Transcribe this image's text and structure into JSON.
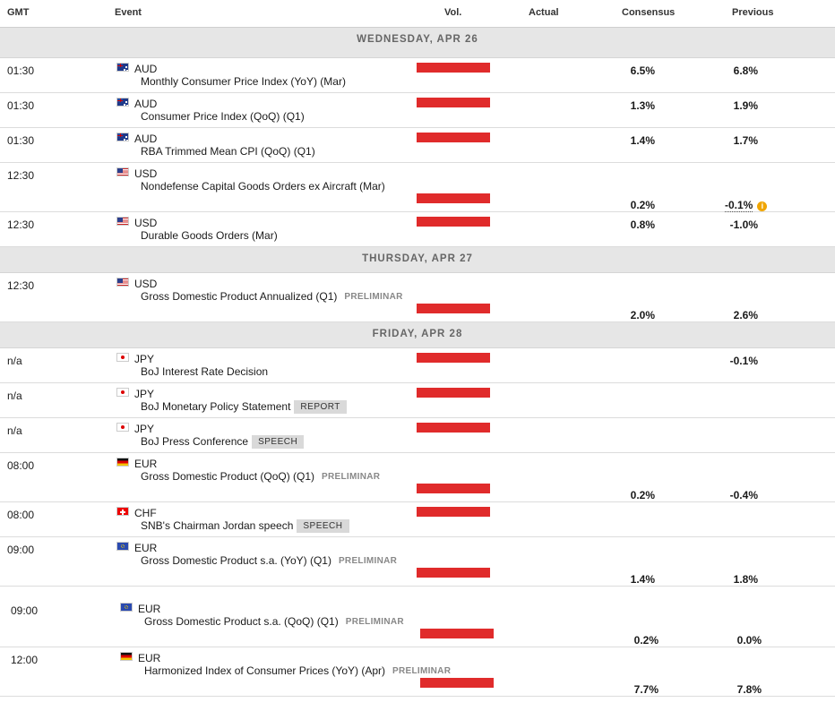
{
  "header": {
    "gmt": "GMT",
    "event": "Event",
    "vol": "Vol.",
    "actual": "Actual",
    "consensus": "Consensus",
    "previous": "Previous"
  },
  "days": [
    "WEDNESDAY, APR 26",
    "THURSDAY, APR 27",
    "FRIDAY, APR 28"
  ],
  "colors": {
    "volume_bar": "#e02b2b",
    "day_band": "#e6e6e6",
    "info_icon": "#f0a500"
  },
  "events": [
    {
      "time": "01:30",
      "currency": "AUD",
      "flag": "australia-flag-icon",
      "name": "Monthly Consumer Price Index (YoY) (Mar)",
      "tag": "",
      "actual": "",
      "consensus": "6.5%",
      "previous": "6.8%"
    },
    {
      "time": "01:30",
      "currency": "AUD",
      "flag": "australia-flag-icon",
      "name": "Consumer Price Index (QoQ) (Q1)",
      "tag": "",
      "actual": "",
      "consensus": "1.3%",
      "previous": "1.9%"
    },
    {
      "time": "01:30",
      "currency": "AUD",
      "flag": "australia-flag-icon",
      "name": "RBA Trimmed Mean CPI (QoQ) (Q1)",
      "tag": "",
      "actual": "",
      "consensus": "1.4%",
      "previous": "1.7%"
    },
    {
      "time": "12:30",
      "currency": "USD",
      "flag": "usa-flag-icon",
      "name": "Nondefense Capital Goods Orders ex Aircraft (Mar)",
      "tag": "",
      "actual": "",
      "consensus": "0.2%",
      "previous": "-0.1%",
      "previous_revised": true
    },
    {
      "time": "12:30",
      "currency": "USD",
      "flag": "usa-flag-icon",
      "name": "Durable Goods Orders (Mar)",
      "tag": "",
      "actual": "",
      "consensus": "0.8%",
      "previous": "-1.0%"
    },
    {
      "time": "12:30",
      "currency": "USD",
      "flag": "usa-flag-icon",
      "name": "Gross Domestic Product Annualized (Q1)",
      "tag": "PRELIMINAR",
      "actual": "",
      "consensus": "2.0%",
      "previous": "2.6%"
    },
    {
      "time": "n/a",
      "currency": "JPY",
      "flag": "japan-flag-icon",
      "name": "BoJ Interest Rate Decision",
      "tag": "",
      "actual": "",
      "consensus": "",
      "previous": "-0.1%"
    },
    {
      "time": "n/a",
      "currency": "JPY",
      "flag": "japan-flag-icon",
      "name": "BoJ Monetary Policy Statement",
      "tag": "REPORT",
      "actual": "",
      "consensus": "",
      "previous": ""
    },
    {
      "time": "n/a",
      "currency": "JPY",
      "flag": "japan-flag-icon",
      "name": "BoJ Press Conference",
      "tag": "SPEECH",
      "actual": "",
      "consensus": "",
      "previous": ""
    },
    {
      "time": "08:00",
      "currency": "EUR",
      "flag": "germany-flag-icon",
      "name": "Gross Domestic Product (QoQ) (Q1)",
      "tag": "PRELIMINAR",
      "actual": "",
      "consensus": "0.2%",
      "previous": "-0.4%"
    },
    {
      "time": "08:00",
      "currency": "CHF",
      "flag": "switzerland-flag-icon",
      "name": "SNB's Chairman Jordan speech",
      "tag": "SPEECH",
      "actual": "",
      "consensus": "",
      "previous": ""
    },
    {
      "time": "09:00",
      "currency": "EUR",
      "flag": "eu-flag-icon",
      "name": "Gross Domestic Product s.a. (YoY) (Q1)",
      "tag": "PRELIMINAR",
      "actual": "",
      "consensus": "1.4%",
      "previous": "1.8%"
    },
    {
      "time": "09:00",
      "currency": "EUR",
      "flag": "eu-flag-icon",
      "name": "Gross Domestic Product s.a. (QoQ) (Q1)",
      "tag": "PRELIMINAR",
      "actual": "",
      "consensus": "0.2%",
      "previous": "0.0%"
    },
    {
      "time": "12:00",
      "currency": "EUR",
      "flag": "germany-flag-icon",
      "name": "Harmonized Index of Consumer Prices (YoY) (Apr)",
      "tag": "PRELIMINAR",
      "actual": "",
      "consensus": "7.7%",
      "previous": "7.8%"
    }
  ]
}
